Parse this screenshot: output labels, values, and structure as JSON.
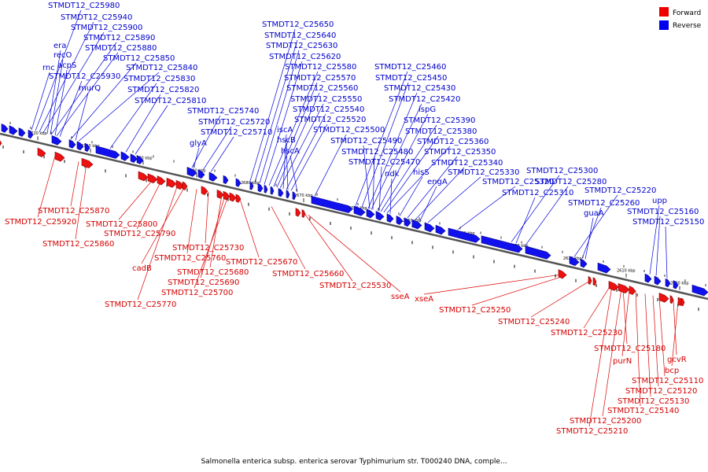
{
  "caption": "Salmonella enterica subsp. enterica serovar Typhimurium str. T000240 DNA, comple...",
  "legend": [
    {
      "label": "Forward",
      "color": "#ee0000"
    },
    {
      "label": "Reverse",
      "color": "#0000ee"
    }
  ],
  "colors": {
    "forward_label": "#d40000",
    "reverse_label": "#0000cc",
    "axis": "#555555"
  },
  "ticks": [
    "2720 kbp",
    "2710 kbp",
    "2700 kbp",
    "2690 kbp",
    "2680 kbp",
    "2670 kbp",
    "2660 kbp",
    "2650 kbp",
    "2640 kbp",
    "2630 kbp",
    "2620 kbp",
    "2610 kbp",
    "2600 kbp"
  ],
  "reverse_labels": [
    "STMDT12_C25980",
    "STMDT12_C25940",
    "STMDT12_C25900",
    "era",
    "STMDT12_C25890",
    "recO",
    "STMDT12_C25880",
    "acpS",
    "STMDT12_C25850",
    "rnc",
    "STMDT12_C25840",
    "STMDT12_C25930",
    "STMDT12_C25830",
    "murQ",
    "STMDT12_C25820",
    "STMDT12_C25810",
    "STMDT12_C25740",
    "STMDT12_C25720",
    "glyA",
    "STMDT12_C25710",
    "STMDT12_C25650",
    "STMDT12_C25640",
    "STMDT12_C25630",
    "STMDT12_C25620",
    "STMDT12_C25580",
    "STMDT12_C25570",
    "STMDT12_C25560",
    "STMDT12_C25550",
    "iscA",
    "STMDT12_C25540",
    "hscB",
    "STMDT12_C25520",
    "hscA",
    "STMDT12_C25500",
    "STMDT12_C25460",
    "STMDT12_C25450",
    "STMDT12_C25430",
    "STMDT12_C25420",
    "ispG",
    "STMDT12_C25390",
    "STMDT12_C25380",
    "STMDT12_C25360",
    "STMDT12_C25490",
    "STMDT12_C25480",
    "STMDT12_C25470",
    "ndk",
    "hisS",
    "STMDT12_C25350",
    "STMDT12_C25340",
    "engA",
    "STMDT12_C25330",
    "STMDT12_C25300",
    "STMDT12_C25320",
    "STMDT12_C25280",
    "STMDT12_C25310",
    "STMDT12_C25220",
    "STMDT12_C25260",
    "guaA",
    "upp",
    "STMDT12_C25160",
    "STMDT12_C25150"
  ],
  "forward_labels": [
    "STMDT12_C25870",
    "STMDT12_C25920",
    "STMDT12_C25800",
    "STMDT12_C25860",
    "STMDT12_C25790",
    "STMDT12_C25730",
    "STMDT12_C25760",
    "cadB",
    "STMDT12_C25680",
    "STMDT12_C25690",
    "STMDT12_C25700",
    "STMDT12_C25770",
    "STMDT12_C25670",
    "STMDT12_C25660",
    "STMDT12_C25530",
    "sseA",
    "xseA",
    "STMDT12_C25250",
    "STMDT12_C25240",
    "STMDT12_C25230",
    "STMDT12_C25180",
    "purN",
    "gcvR",
    "bcp",
    "STMDT12_C25110",
    "STMDT12_C25120",
    "STMDT12_C25130",
    "STMDT12_C25140",
    "STMDT12_C25200",
    "STMDT12_C25210"
  ]
}
